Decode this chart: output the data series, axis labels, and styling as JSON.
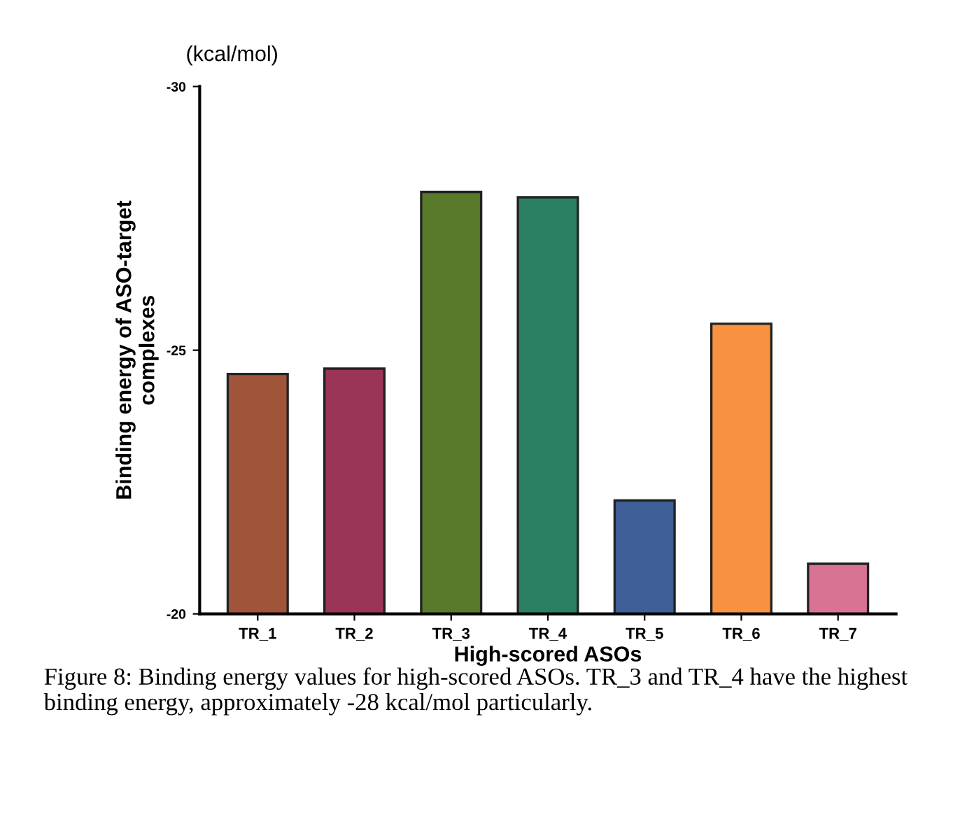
{
  "chart_data": {
    "type": "bar",
    "xlabel": "High-scored ASOs",
    "ylabel": "Binding energy of ASO-target\ncomplexes",
    "categories": [
      "TR_1",
      "TR_2",
      "TR_3",
      "TR_4",
      "TR_5",
      "TR_6",
      "TR_7"
    ],
    "values": [
      -24.55,
      -24.65,
      -28.0,
      -27.9,
      -22.15,
      -25.5,
      -20.95
    ],
    "colors": [
      "#a0553b",
      "#9b3558",
      "#5a7a2b",
      "#2b8063",
      "#3e5f97",
      "#f99240",
      "#d97394"
    ],
    "ylim": [
      -20,
      -30
    ],
    "yticks": [
      -20,
      -25,
      -30
    ],
    "grid": false,
    "annotations": [
      "(kcal/mol)",
      "Figure 8: Binding energy values for high-scored ASOs. TR_3 and TR_4 have the highest binding energy, approximately -28 kcal/mol particularly."
    ]
  }
}
